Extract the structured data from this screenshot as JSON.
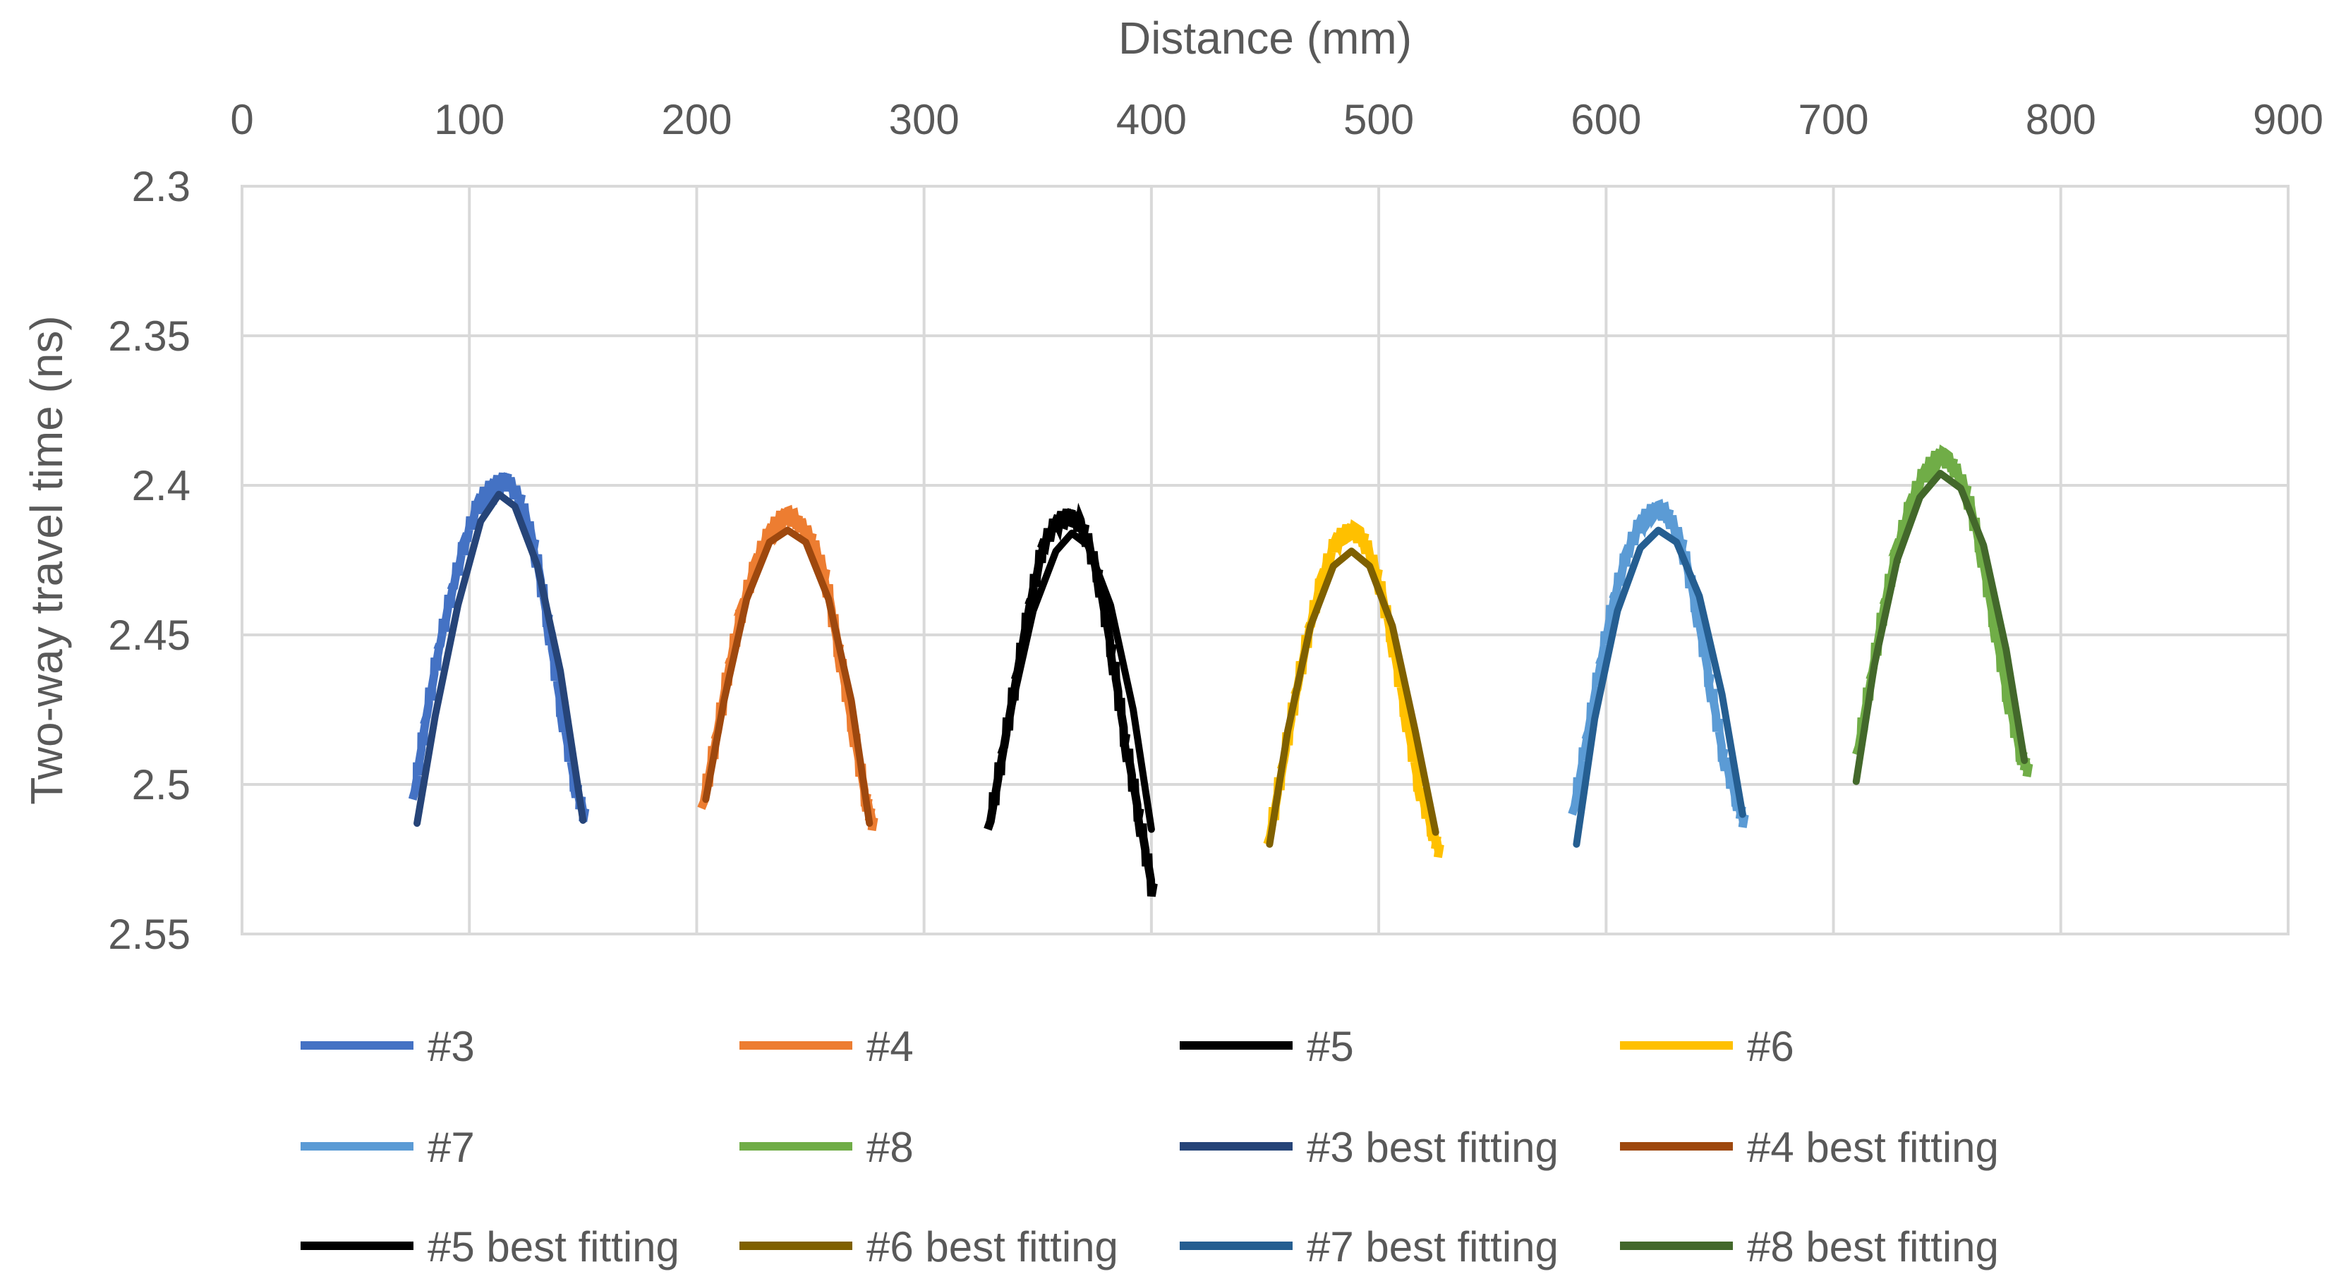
{
  "chart_data": {
    "type": "line",
    "title": "",
    "xlabel": "Distance (mm)",
    "ylabel": "Two-way travel time (ns)",
    "x_axis_position": "top",
    "y_axis_reversed": true,
    "xlim": [
      0,
      900
    ],
    "ylim": [
      2.3,
      2.55
    ],
    "x_ticks": [
      0,
      100,
      200,
      300,
      400,
      500,
      600,
      700,
      800,
      900
    ],
    "y_ticks": [
      2.3,
      2.35,
      2.4,
      2.45,
      2.5,
      2.55
    ],
    "x_tick_labels": [
      "0",
      "100",
      "200",
      "300",
      "400",
      "500",
      "600",
      "700",
      "800",
      "900"
    ],
    "y_tick_labels": [
      "2.3",
      "2.35",
      "2.4",
      "2.45",
      "2.5",
      "2.55"
    ],
    "grid": true,
    "legend_position": "bottom",
    "series": [
      {
        "name": "#3",
        "kind": "measured",
        "color": "#4472C4",
        "x": [
          75,
          80,
          86,
          92,
          98,
          104,
          110,
          116,
          122,
          128,
          134,
          140,
          146,
          150
        ],
        "y": [
          2.505,
          2.48,
          2.455,
          2.435,
          2.418,
          2.405,
          2.4,
          2.398,
          2.405,
          2.42,
          2.445,
          2.475,
          2.5,
          2.51
        ]
      },
      {
        "name": "#4",
        "kind": "measured",
        "color": "#ED7D31",
        "x": [
          202,
          208,
          214,
          220,
          226,
          232,
          238,
          244,
          250,
          256,
          262,
          268,
          274,
          277
        ],
        "y": [
          2.508,
          2.485,
          2.46,
          2.44,
          2.425,
          2.415,
          2.41,
          2.412,
          2.418,
          2.43,
          2.455,
          2.48,
          2.505,
          2.513
        ]
      },
      {
        "name": "#5",
        "kind": "measured",
        "color": "#000000",
        "x": [
          328,
          334,
          340,
          346,
          352,
          358,
          364,
          370,
          376,
          382,
          388,
          394,
          400
        ],
        "y": [
          2.515,
          2.49,
          2.465,
          2.44,
          2.42,
          2.412,
          2.41,
          2.415,
          2.43,
          2.455,
          2.485,
          2.51,
          2.535
        ]
      },
      {
        "name": "#6",
        "kind": "measured",
        "color": "#FFC000",
        "x": [
          451,
          457,
          463,
          469,
          475,
          481,
          487,
          493,
          499,
          505,
          511,
          517,
          523,
          526
        ],
        "y": [
          2.52,
          2.495,
          2.47,
          2.448,
          2.43,
          2.418,
          2.415,
          2.418,
          2.43,
          2.45,
          2.475,
          2.5,
          2.515,
          2.522
        ]
      },
      {
        "name": "#7",
        "kind": "measured",
        "color": "#5B9BD5",
        "x": [
          585,
          591,
          597,
          603,
          609,
          615,
          621,
          627,
          633,
          639,
          645,
          651,
          657,
          660
        ],
        "y": [
          2.51,
          2.485,
          2.46,
          2.438,
          2.422,
          2.412,
          2.408,
          2.41,
          2.42,
          2.44,
          2.465,
          2.49,
          2.505,
          2.512
        ]
      },
      {
        "name": "#8",
        "kind": "measured",
        "color": "#70AD47",
        "x": [
          710,
          716,
          722,
          728,
          734,
          740,
          746,
          752,
          758,
          764,
          770,
          776,
          782,
          785
        ],
        "y": [
          2.49,
          2.465,
          2.44,
          2.42,
          2.405,
          2.395,
          2.39,
          2.393,
          2.402,
          2.42,
          2.445,
          2.47,
          2.49,
          2.495
        ]
      },
      {
        "name": "#3 best fitting",
        "kind": "fit",
        "color": "#264478",
        "x": [
          77,
          85,
          95,
          105,
          113,
          120,
          130,
          140,
          150
        ],
        "y": [
          2.513,
          2.477,
          2.44,
          2.412,
          2.403,
          2.407,
          2.427,
          2.462,
          2.512
        ]
      },
      {
        "name": "#4 best fitting",
        "kind": "fit",
        "color": "#9E480E",
        "x": [
          204,
          212,
          222,
          232,
          240,
          248,
          258,
          268,
          276
        ],
        "y": [
          2.505,
          2.472,
          2.438,
          2.419,
          2.415,
          2.419,
          2.438,
          2.472,
          2.513
        ]
      },
      {
        "name": "#5 best fitting",
        "kind": "fit",
        "color": "#000000",
        "x": [
          330,
          338,
          348,
          358,
          365,
          372,
          382,
          392,
          400
        ],
        "y": [
          2.51,
          2.476,
          2.442,
          2.422,
          2.416,
          2.42,
          2.44,
          2.475,
          2.515
        ]
      },
      {
        "name": "#6 best fitting",
        "kind": "fit",
        "color": "#7F6000",
        "x": [
          452,
          460,
          470,
          480,
          488,
          496,
          506,
          516,
          525
        ],
        "y": [
          2.52,
          2.482,
          2.447,
          2.427,
          2.422,
          2.427,
          2.447,
          2.482,
          2.516
        ]
      },
      {
        "name": "#7 best fitting",
        "kind": "fit",
        "color": "#255E91",
        "x": [
          587,
          595,
          605,
          615,
          623,
          631,
          641,
          651,
          660
        ],
        "y": [
          2.52,
          2.478,
          2.442,
          2.421,
          2.415,
          2.419,
          2.437,
          2.47,
          2.51
        ]
      },
      {
        "name": "#8 best fitting",
        "kind": "fit",
        "color": "#43682B",
        "x": [
          710,
          718,
          728,
          738,
          747,
          756,
          766,
          776,
          784
        ],
        "y": [
          2.499,
          2.46,
          2.425,
          2.404,
          2.396,
          2.401,
          2.42,
          2.455,
          2.492
        ]
      }
    ]
  }
}
